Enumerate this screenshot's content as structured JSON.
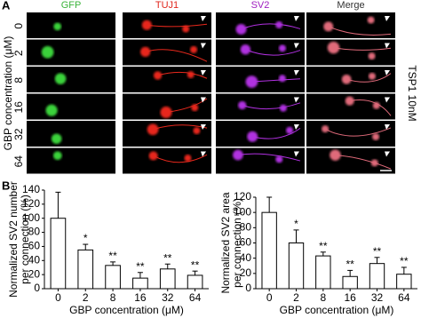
{
  "panel_a": {
    "label": "A",
    "columns": [
      "GFP",
      "TUJ1",
      "SV2",
      "Merge"
    ],
    "column_colors": [
      "#3bb33b",
      "#e0261c",
      "#a020c0",
      "#333333"
    ],
    "rows": [
      "0",
      "2",
      "8",
      "16",
      "32",
      "64"
    ],
    "row_axis_label": "GBP concentration (μM)",
    "side_label": "TSP1 10nM"
  },
  "panel_b_label": "B",
  "chart_data": [
    {
      "type": "bar",
      "ylabel_lines": [
        "Normalized SV2 number",
        "per connection (%)"
      ],
      "xlabel": "GBP concentration (μM)",
      "categories": [
        "0",
        "2",
        "8",
        "16",
        "32",
        "64"
      ],
      "values": [
        100,
        55,
        33,
        15,
        28,
        19
      ],
      "errors": [
        37,
        8,
        5,
        8,
        7,
        6
      ],
      "significance": [
        null,
        "*",
        "**",
        "**",
        "**",
        "**"
      ],
      "ylim": [
        0,
        140
      ],
      "yticks": [
        0,
        20,
        40,
        60,
        80,
        100,
        120,
        140
      ],
      "color": "#ffffff"
    },
    {
      "type": "bar",
      "ylabel_lines": [
        "Normalized SV2 area",
        "per connection (%)"
      ],
      "xlabel": "GBP concentration (μM)",
      "categories": [
        "0",
        "2",
        "8",
        "16",
        "32",
        "64"
      ],
      "values": [
        100,
        60,
        43,
        16,
        33,
        19
      ],
      "errors": [
        20,
        17,
        5,
        8,
        8,
        9
      ],
      "significance": [
        null,
        "*",
        "**",
        "**",
        "**",
        "**"
      ],
      "ylim": [
        0,
        120
      ],
      "yticks": [
        0,
        20,
        40,
        60,
        80,
        100,
        120
      ],
      "color": "#ffffff"
    }
  ]
}
